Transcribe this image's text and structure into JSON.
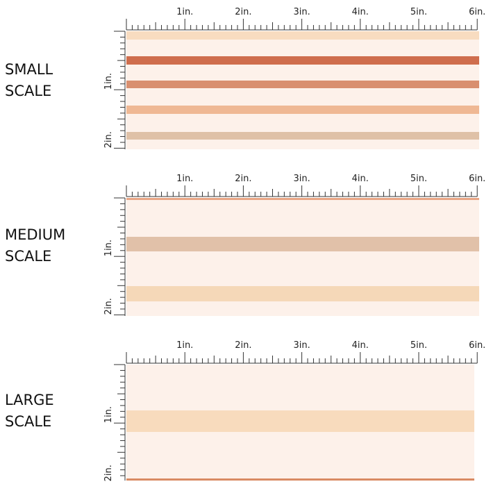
{
  "panels": [
    {
      "label_lines": [
        "SMALL",
        "SCALE"
      ],
      "ruler_top": [
        "1in.",
        "2in.",
        "3in.",
        "4in.",
        "5in.",
        "6in."
      ],
      "ruler_side": [
        "1in.",
        "2in."
      ]
    },
    {
      "label_lines": [
        "MEDIUM",
        "SCALE"
      ],
      "ruler_top": [
        "1in.",
        "2in.",
        "3in.",
        "4in.",
        "5in.",
        "6in."
      ],
      "ruler_side": [
        "1in.",
        "2in."
      ]
    },
    {
      "label_lines": [
        "LARGE",
        "SCALE"
      ],
      "ruler_top": [
        "1in.",
        "2in.",
        "3in.",
        "4in.",
        "5in.",
        "6in."
      ],
      "ruler_side": [
        "1in.",
        "2in."
      ]
    }
  ]
}
